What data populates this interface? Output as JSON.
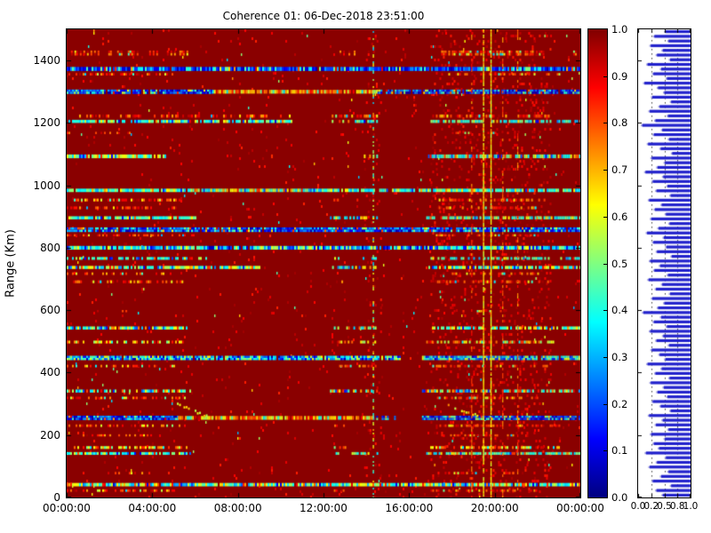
{
  "chart_data": {
    "type": "heatmap",
    "title": "Coherence 01: 06-Dec-2018 23:51:00",
    "ylabel": "Range (Km)",
    "xlim_hours": [
      0,
      24
    ],
    "ylim_km": [
      0,
      1500
    ],
    "x_tick_hours": [
      0,
      4,
      8,
      12,
      16,
      20,
      24
    ],
    "x_tick_labels": [
      "00:00:00",
      "04:00:00",
      "08:00:00",
      "12:00:00",
      "16:00:00",
      "20:00:00",
      "00:00:00"
    ],
    "y_ticks": [
      0,
      200,
      400,
      600,
      800,
      1000,
      1200,
      1400
    ],
    "colormap": "jet",
    "background_value": 0.99,
    "colorbar": {
      "ticks": [
        "0.0",
        "0.1",
        "0.2",
        "0.3",
        "0.4",
        "0.5",
        "0.6",
        "0.7",
        "0.8",
        "0.9",
        "1.0"
      ],
      "vmin": 0.0,
      "vmax": 1.0
    },
    "palettes": {
      "blue": [
        [
          0.72,
          0.04,
          0.3
        ],
        [
          0.2,
          0.3,
          0.52
        ],
        [
          0.08,
          0.55,
          0.92
        ]
      ],
      "cyan": [
        [
          0.66,
          0.3,
          0.52
        ],
        [
          0.2,
          0.5,
          0.66
        ],
        [
          0.07,
          0.1,
          0.3
        ],
        [
          0.07,
          0.68,
          0.9
        ]
      ],
      "cyanblue": [
        [
          0.6,
          0.16,
          0.45
        ],
        [
          0.26,
          0.45,
          0.62
        ],
        [
          0.14,
          0.04,
          0.16
        ]
      ],
      "cyanyellow": [
        [
          0.73,
          0.32,
          0.66
        ],
        [
          0.14,
          0.12,
          0.32
        ],
        [
          0.13,
          0.66,
          0.88
        ]
      ],
      "warm": [
        [
          0.8,
          0.72,
          0.97
        ],
        [
          0.12,
          0.55,
          0.72
        ],
        [
          0.08,
          0.3,
          0.55
        ]
      ],
      "warmyellow": [
        [
          0.73,
          0.55,
          0.85
        ],
        [
          0.16,
          0.35,
          0.55
        ],
        [
          0.11,
          0.85,
          0.95
        ]
      ],
      "cyanwarm": [
        [
          0.48,
          0.3,
          0.55
        ],
        [
          0.36,
          0.6,
          0.9
        ],
        [
          0.16,
          0.1,
          0.3
        ]
      ],
      "rainbow": [
        [
          0.78,
          0.25,
          0.72
        ],
        [
          0.11,
          0.06,
          0.25
        ],
        [
          0.11,
          0.72,
          0.9
        ]
      ]
    },
    "bands": [
      {
        "r": 1424,
        "h": 16,
        "k": "warm",
        "s": [
          [
            0.2,
            5.6,
            0.5
          ],
          [
            12.5,
            13.5,
            0.3
          ],
          [
            17.5,
            22.3,
            0.55
          ],
          [
            23.0,
            24,
            0.3
          ]
        ]
      },
      {
        "r": 1373,
        "h": 13,
        "k": "blue",
        "s": [
          [
            0,
            24,
            0.97
          ]
        ]
      },
      {
        "r": 1356,
        "h": 8,
        "k": "warm",
        "s": [
          [
            0,
            5,
            0.45
          ],
          [
            17.5,
            23,
            0.5
          ]
        ]
      },
      {
        "r": 1300,
        "h": 14,
        "k": "blue",
        "s": [
          [
            0,
            6.8,
            0.95
          ],
          [
            14.5,
            24,
            0.95
          ]
        ]
      },
      {
        "r": 1300,
        "h": 12,
        "k": "warmyellow",
        "s": [
          [
            6.8,
            14.5,
            0.93
          ]
        ]
      },
      {
        "r": 1222,
        "h": 10,
        "k": "warm",
        "s": [
          [
            0.5,
            10.5,
            0.5
          ],
          [
            12.3,
            14.5,
            0.45
          ],
          [
            17,
            22.5,
            0.6
          ]
        ]
      },
      {
        "r": 1205,
        "h": 10,
        "k": "cyan",
        "s": [
          [
            0,
            10.5,
            0.8
          ],
          [
            12.3,
            14.5,
            0.5
          ],
          [
            17,
            24,
            0.7
          ]
        ]
      },
      {
        "r": 1168,
        "h": 7,
        "k": "warm",
        "s": [
          [
            0,
            3,
            0.25
          ],
          [
            18,
            21,
            0.3
          ]
        ]
      },
      {
        "r": 1093,
        "h": 12,
        "k": "cyanyellow",
        "s": [
          [
            0,
            4.6,
            0.9
          ],
          [
            9.3,
            9.7,
            0.5
          ],
          [
            13.8,
            14.5,
            0.6
          ],
          [
            16.8,
            24,
            0.85
          ]
        ]
      },
      {
        "r": 984,
        "h": 11,
        "k": "cyan",
        "s": [
          [
            0,
            5.8,
            0.95
          ],
          [
            11.5,
            14.4,
            0.9
          ],
          [
            14.6,
            15.2,
            0.4
          ],
          [
            15.2,
            24,
            0.9
          ]
        ]
      },
      {
        "r": 984,
        "h": 11,
        "k": "cyanyellow",
        "s": [
          [
            5.8,
            11.5,
            0.95
          ]
        ]
      },
      {
        "r": 953,
        "h": 9,
        "k": "warm",
        "s": [
          [
            0,
            5.3,
            0.55
          ],
          [
            12.3,
            14.5,
            0.4
          ],
          [
            17.3,
            22.3,
            0.6
          ]
        ]
      },
      {
        "r": 928,
        "h": 9,
        "k": "warm",
        "s": [
          [
            0,
            5.3,
            0.5
          ],
          [
            17.3,
            22,
            0.55
          ]
        ]
      },
      {
        "r": 896,
        "h": 10,
        "k": "cyan",
        "s": [
          [
            0,
            6,
            0.85
          ],
          [
            12.3,
            14.5,
            0.55
          ],
          [
            16.8,
            24,
            0.8
          ]
        ]
      },
      {
        "r": 858,
        "h": 15,
        "k": "blue",
        "s": [
          [
            0,
            24,
            0.97
          ]
        ]
      },
      {
        "r": 840,
        "h": 7,
        "k": "warm",
        "s": [
          [
            0,
            6,
            0.5
          ],
          [
            17,
            22,
            0.5
          ]
        ]
      },
      {
        "r": 800,
        "h": 12,
        "k": "cyanblue",
        "s": [
          [
            0,
            24,
            0.95
          ]
        ]
      },
      {
        "r": 766,
        "h": 9,
        "k": "cyan",
        "s": [
          [
            0,
            6.5,
            0.6
          ],
          [
            12.5,
            14.5,
            0.5
          ],
          [
            17,
            24,
            0.6
          ]
        ]
      },
      {
        "r": 737,
        "h": 10,
        "k": "cyanyellow",
        "s": [
          [
            0,
            9,
            0.8
          ],
          [
            12.4,
            14.5,
            0.6
          ],
          [
            16.9,
            24,
            0.75
          ]
        ]
      },
      {
        "r": 717,
        "h": 8,
        "k": "warm",
        "s": [
          [
            0,
            5,
            0.4
          ],
          [
            17.5,
            22,
            0.45
          ]
        ]
      },
      {
        "r": 691,
        "h": 9,
        "k": "warm",
        "s": [
          [
            0.3,
            5.5,
            0.5
          ],
          [
            12.5,
            13.5,
            0.3
          ],
          [
            17.3,
            22.5,
            0.55
          ]
        ]
      },
      {
        "r": 597,
        "h": 7,
        "k": "warm",
        "s": [
          [
            1,
            3,
            0.2
          ],
          [
            18,
            20.5,
            0.25
          ]
        ]
      },
      {
        "r": 543,
        "h": 10,
        "k": "cyanyellow",
        "s": [
          [
            0,
            5.6,
            0.85
          ],
          [
            12.4,
            14.5,
            0.5
          ],
          [
            16.9,
            24,
            0.8
          ]
        ]
      },
      {
        "r": 498,
        "h": 9,
        "k": "warmyellow",
        "s": [
          [
            0,
            5.5,
            0.55
          ],
          [
            12.3,
            14.6,
            0.45
          ],
          [
            16.8,
            22.8,
            0.6
          ]
        ]
      },
      {
        "r": 447,
        "h": 14,
        "k": "cyanblue",
        "s": [
          [
            0,
            15.6,
            0.96
          ],
          [
            16.6,
            24,
            0.96
          ]
        ]
      },
      {
        "r": 421,
        "h": 8,
        "k": "warm",
        "s": [
          [
            0,
            5,
            0.45
          ],
          [
            12.4,
            14.5,
            0.35
          ],
          [
            17,
            22.5,
            0.5
          ]
        ]
      },
      {
        "r": 341,
        "h": 10,
        "k": "cyanwarm",
        "s": [
          [
            0,
            5.8,
            0.7
          ],
          [
            12.3,
            14.6,
            0.5
          ],
          [
            16.6,
            24,
            0.75
          ]
        ]
      },
      {
        "r": 319,
        "h": 8,
        "k": "warm",
        "s": [
          [
            0,
            5.5,
            0.5
          ],
          [
            17.3,
            22,
            0.5
          ]
        ]
      },
      {
        "r": 255,
        "h": 14,
        "k": "blue",
        "s": [
          [
            0,
            5.2,
            0.97
          ],
          [
            14.3,
            15.3,
            0.6
          ],
          [
            16.6,
            24,
            0.97
          ]
        ]
      },
      {
        "r": 255,
        "h": 12,
        "k": "warmyellow",
        "s": [
          [
            5.2,
            14.3,
            0.9
          ]
        ]
      },
      {
        "r": 230,
        "h": 8,
        "k": "warm",
        "s": [
          [
            0,
            5.5,
            0.5
          ],
          [
            12.5,
            13.2,
            0.3
          ],
          [
            17,
            23,
            0.55
          ]
        ]
      },
      {
        "r": 199,
        "h": 7,
        "k": "warm",
        "s": [
          [
            0.5,
            4,
            0.35
          ],
          [
            17.5,
            21,
            0.4
          ]
        ]
      },
      {
        "r": 160,
        "h": 9,
        "k": "warmyellow",
        "s": [
          [
            0,
            5.6,
            0.6
          ],
          [
            12.4,
            13.4,
            0.4
          ],
          [
            16.9,
            23,
            0.65
          ]
        ]
      },
      {
        "r": 141,
        "h": 9,
        "k": "cyan",
        "s": [
          [
            0,
            5.8,
            0.85
          ],
          [
            12.4,
            14.5,
            0.5
          ],
          [
            16.8,
            24,
            0.8
          ]
        ]
      },
      {
        "r": 78,
        "h": 8,
        "k": "warm",
        "s": [
          [
            0.5,
            4,
            0.25
          ],
          [
            18,
            21,
            0.3
          ]
        ]
      },
      {
        "r": 41,
        "h": 11,
        "k": "rainbow",
        "s": [
          [
            0,
            24,
            0.97
          ]
        ]
      },
      {
        "r": 22,
        "h": 8,
        "k": "warm",
        "s": [
          [
            0,
            5,
            0.45
          ],
          [
            12.4,
            13.2,
            0.3
          ],
          [
            17,
            22,
            0.5
          ]
        ]
      }
    ],
    "trails": [
      {
        "t0": 5.15,
        "r0": 302,
        "t1": 6.6,
        "r1": 262
      },
      {
        "t0": 17.7,
        "r0": 300,
        "t1": 19.2,
        "r1": 265
      }
    ],
    "vstreaks": [
      {
        "t": 14.3,
        "kind": "dashed"
      },
      {
        "t": 18.9,
        "kind": "faint"
      },
      {
        "t": 19.45,
        "kind": "solid"
      },
      {
        "t": 19.8,
        "kind": "solid"
      },
      {
        "t": 20.35,
        "kind": "faint"
      },
      {
        "t": 21.05,
        "kind": "faint"
      }
    ],
    "noise_zones": [
      {
        "t0": 0,
        "t1": 24,
        "p": 0.018
      },
      {
        "t0": 13.9,
        "t1": 14.7,
        "p": 0.05
      },
      {
        "t0": 17.0,
        "t1": 22.6,
        "p": 0.09
      }
    ],
    "side_panel": {
      "bar_anchor": "right",
      "bar_color": "#2222cc",
      "bar_color_light": "#9a9ae0",
      "grid_x": [
        0.25,
        0.5,
        0.75
      ],
      "x_tick_pos": [
        0,
        0.25,
        0.5,
        0.75,
        1.0
      ],
      "x_tick_labels": [
        "0.0",
        "0.2",
        "0.5",
        "0.8",
        "1.0"
      ],
      "values": [
        0.52,
        0.31,
        0.58,
        0.24,
        0.47,
        0.36,
        0.61,
        0.18,
        0.44,
        0.29,
        0.55,
        0.12,
        0.38,
        0.5,
        0.27,
        0.63,
        0.41,
        0.22,
        0.57,
        0.33,
        0.08,
        0.46,
        0.3,
        0.59,
        0.19,
        0.43,
        0.65,
        0.26,
        0.51,
        0.37,
        0.14,
        0.48,
        0.28,
        0.56,
        0.35,
        0.62,
        0.21,
        0.45,
        0.32,
        0.53,
        0.25,
        0.6,
        0.39,
        0.17,
        0.49,
        0.29,
        0.54,
        0.36,
        0.64,
        0.23,
        0.42,
        0.31,
        0.57,
        0.2,
        0.46,
        0.34,
        0.61,
        0.27,
        0.5,
        0.38,
        0.1,
        0.44,
        0.3,
        0.55,
        0.23,
        0.48,
        0.35,
        0.59,
        0.26,
        0.41,
        0.52,
        0.18,
        0.45,
        0.33,
        0.6,
        0.24,
        0.49,
        0.37,
        0.56,
        0.28,
        0.43,
        0.62,
        0.21,
        0.47,
        0.34,
        0.58,
        0.25,
        0.51,
        0.3,
        0.4,
        0.15,
        0.53,
        0.36,
        0.22,
        0.58,
        0.44,
        0.28,
        0.63,
        0.35,
        0.47
      ]
    }
  }
}
